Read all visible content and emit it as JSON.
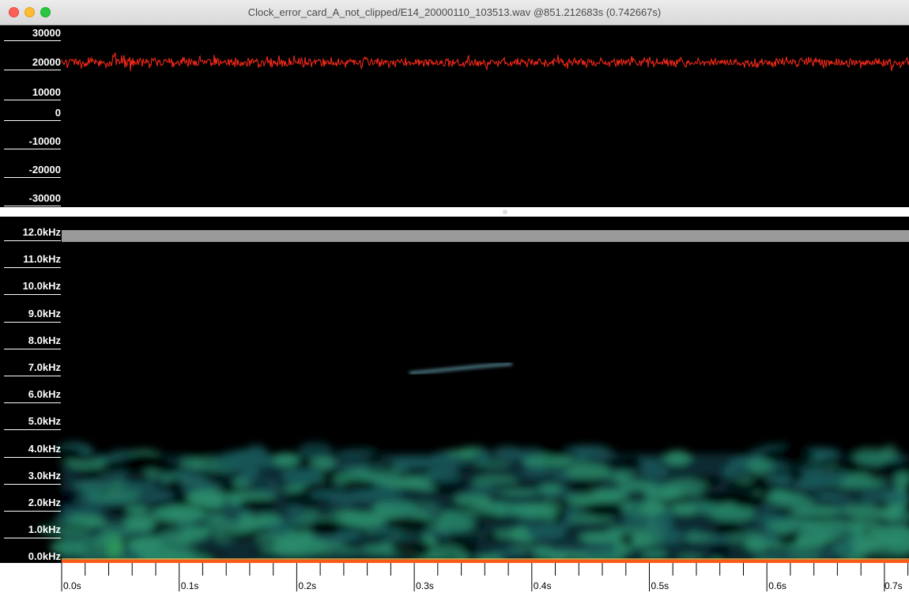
{
  "window": {
    "title": "Clock_error_card_A_not_clipped/E14_20000110_103513.wav @851.212683s (0.742667s)"
  },
  "waveform": {
    "y_axis_labels": [
      "30000",
      "20000",
      "10000",
      "0",
      "-10000",
      "-20000",
      "-30000"
    ],
    "trace_color": "#ff2a1a",
    "trace_level": 19000
  },
  "spectrogram": {
    "y_axis_labels": [
      "12.0kHz",
      "11.0kHz",
      "10.0kHz",
      "9.0kHz",
      "8.0kHz",
      "7.0kHz",
      "6.0kHz",
      "5.0kHz",
      "4.0kHz",
      "3.0kHz",
      "2.0kHz",
      "1.0kHz",
      "0.0kHz"
    ],
    "colormap": [
      "#000000",
      "#0d2a33",
      "#19575a",
      "#2a8a6a"
    ]
  },
  "time_axis": {
    "labels": [
      "0.0s",
      "0.1s",
      "0.2s",
      "0.3s",
      "0.4s",
      "0.5s",
      "0.6s",
      "0.7s"
    ]
  }
}
